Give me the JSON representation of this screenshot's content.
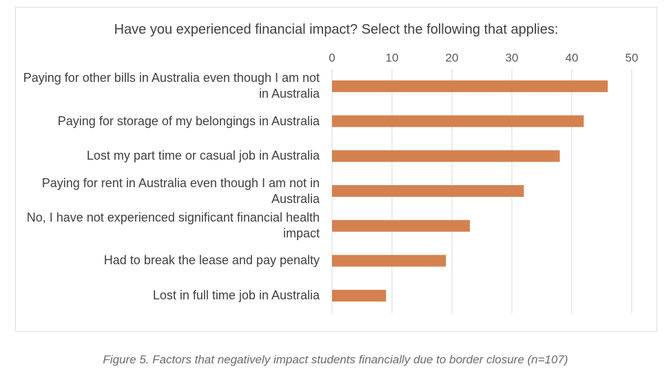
{
  "chart_data": {
    "type": "bar",
    "orientation": "horizontal",
    "title": "Have you experienced financial impact? Select the following that applies:",
    "categories": [
      "Paying for other bills in Australia even though I am not in Australia",
      "Paying for storage of my belongings in Australia",
      "Lost my part time or casual job in Australia",
      "Paying for rent in Australia even though I am not in Australia",
      "No, I have not experienced significant financial health impact",
      "Had to break the lease and pay penalty",
      "Lost in full time job in Australia"
    ],
    "values": [
      46,
      42,
      38,
      32,
      23,
      19,
      9
    ],
    "color": "#d4814f",
    "xlim": [
      0,
      50
    ],
    "xticks": [
      0,
      10,
      20,
      30,
      40,
      50
    ],
    "grid": true,
    "caption": "Figure 5. Factors that negatively impact students financially due to border closure (n=107)"
  }
}
